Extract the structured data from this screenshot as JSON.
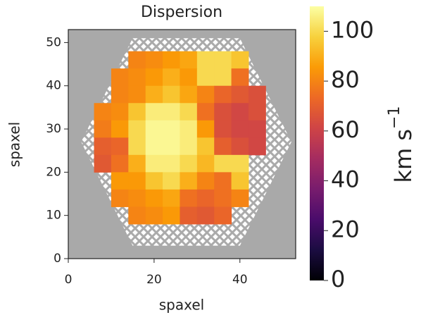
{
  "chart_data": {
    "type": "heatmap",
    "title": "Dispersion",
    "xlabel": "spaxel",
    "ylabel": "spaxel",
    "xlim": [
      0,
      53
    ],
    "ylim": [
      0,
      53
    ],
    "xticks": [
      0,
      20,
      40
    ],
    "yticks": [
      0,
      10,
      20,
      30,
      40,
      50
    ],
    "colormap": "inferno",
    "clim": [
      0,
      110
    ],
    "cticks": [
      0,
      20,
      40,
      60,
      80,
      100
    ],
    "colorbar_label": "km s",
    "colorbar_label_exponent": "−1",
    "x": [
      8,
      12,
      16,
      20,
      24,
      28,
      32,
      36,
      40,
      44
    ],
    "y": [
      46,
      42,
      38,
      34,
      30,
      26,
      22,
      18,
      14,
      10
    ],
    "z": [
      [
        null,
        null,
        80,
        82,
        85,
        88,
        100,
        100,
        95,
        null
      ],
      [
        null,
        80,
        82,
        85,
        90,
        85,
        100,
        100,
        75,
        null
      ],
      [
        null,
        80,
        82,
        90,
        95,
        88,
        80,
        72,
        68,
        65
      ],
      [
        80,
        82,
        95,
        105,
        105,
        100,
        75,
        65,
        62,
        65
      ],
      [
        78,
        85,
        100,
        108,
        108,
        105,
        85,
        65,
        62,
        62
      ],
      [
        70,
        72,
        100,
        108,
        108,
        105,
        95,
        70,
        65,
        62
      ],
      [
        68,
        75,
        90,
        105,
        105,
        100,
        92,
        100,
        100,
        null
      ],
      [
        null,
        85,
        85,
        95,
        100,
        90,
        80,
        75,
        95,
        null
      ],
      [
        null,
        80,
        82,
        85,
        88,
        75,
        72,
        75,
        80,
        null
      ],
      [
        null,
        null,
        80,
        82,
        85,
        70,
        68,
        72,
        null,
        null
      ]
    ]
  }
}
